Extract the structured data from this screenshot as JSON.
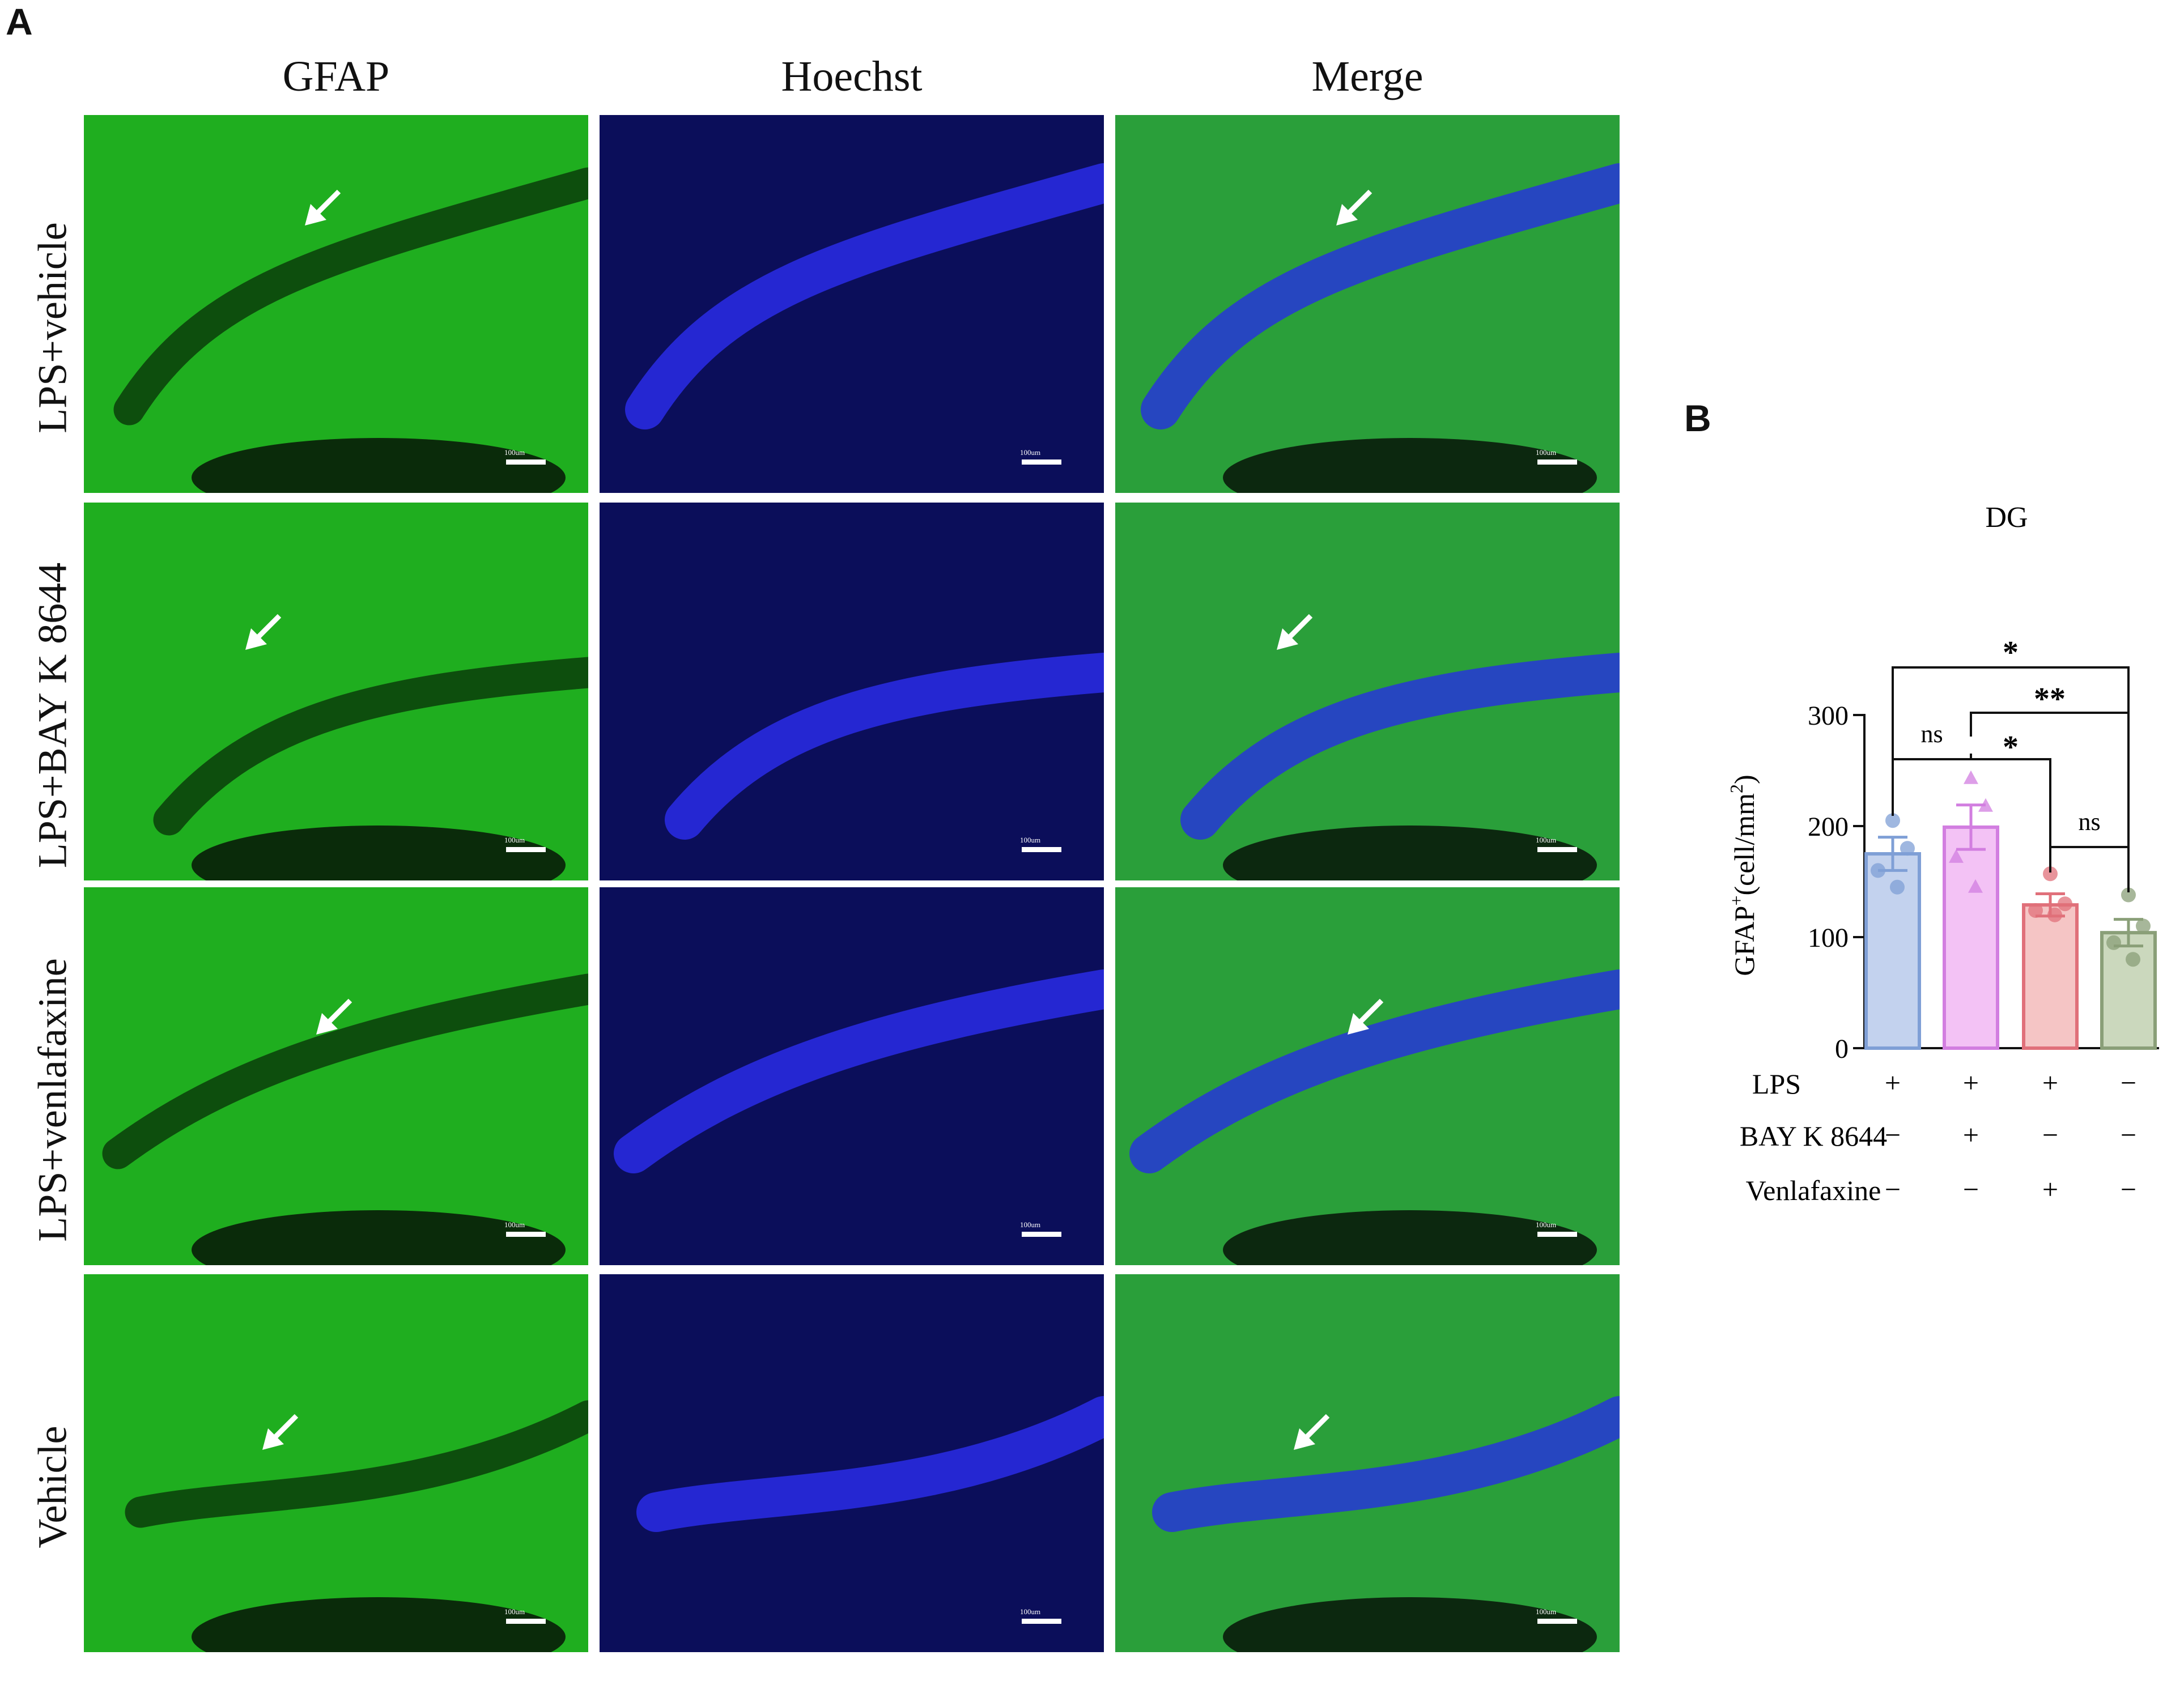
{
  "panel_labels": {
    "a": "A",
    "b": "B"
  },
  "microscopy": {
    "columns": [
      "GFAP",
      "Hoechst",
      "Merge"
    ],
    "rows": [
      "LPS+vehicle",
      "LPS+BAY K 8644",
      "LPS+venlafaxine",
      "Vehicle"
    ],
    "scale_bar_text": "100um",
    "colors": {
      "gfap": "#1fae1f",
      "hoechst": "#2a2ce8",
      "merge_green": "#2a9f3a",
      "merge_blue": "#2636d8"
    }
  },
  "chart_data": {
    "type": "bar",
    "title": "DG",
    "ylabel_main": "GFAP",
    "ylabel_sup": "+",
    "ylabel_unit": "(cell/mm",
    "ylabel_unit_sup": "2",
    "ylabel_close": ")",
    "ylim": [
      0,
      300
    ],
    "yticks": [
      0,
      100,
      200,
      300
    ],
    "series": [
      {
        "color": "#7f9fd6",
        "fill": "#c3d2ee",
        "mean": 175,
        "sem": 15,
        "points": [
          205,
          180,
          160,
          145
        ],
        "marker": "circle"
      },
      {
        "color": "#d27ee0",
        "fill": "#f3c2f5",
        "mean": 199,
        "sem": 20,
        "points": [
          243,
          218,
          172,
          145
        ],
        "marker": "triangle"
      },
      {
        "color": "#e0707a",
        "fill": "#f5c5c5",
        "mean": 129,
        "sem": 10,
        "points": [
          157,
          130,
          124,
          120
        ],
        "marker": "circle"
      },
      {
        "color": "#8a9f78",
        "fill": "#cbd8bd",
        "mean": 104,
        "sem": 12,
        "points": [
          138,
          110,
          95,
          80
        ],
        "marker": "circle"
      }
    ],
    "conditions": [
      {
        "label": "LPS",
        "signs": [
          "+",
          "+",
          "+",
          "−"
        ]
      },
      {
        "label": "BAY K 8644",
        "signs": [
          "−",
          "+",
          "−",
          "−"
        ]
      },
      {
        "label": "Venlafaxine",
        "signs": [
          "−",
          "−",
          "+",
          "−"
        ]
      }
    ],
    "comparisons": [
      {
        "from": 1,
        "to": 2,
        "label": "ns"
      },
      {
        "from": 2,
        "to": 3,
        "label": "*"
      },
      {
        "from": 3,
        "to": 4,
        "label": "ns"
      },
      {
        "from": 2,
        "to": 4,
        "label": "**"
      },
      {
        "from": 1,
        "to": 4,
        "label": "*"
      }
    ]
  }
}
